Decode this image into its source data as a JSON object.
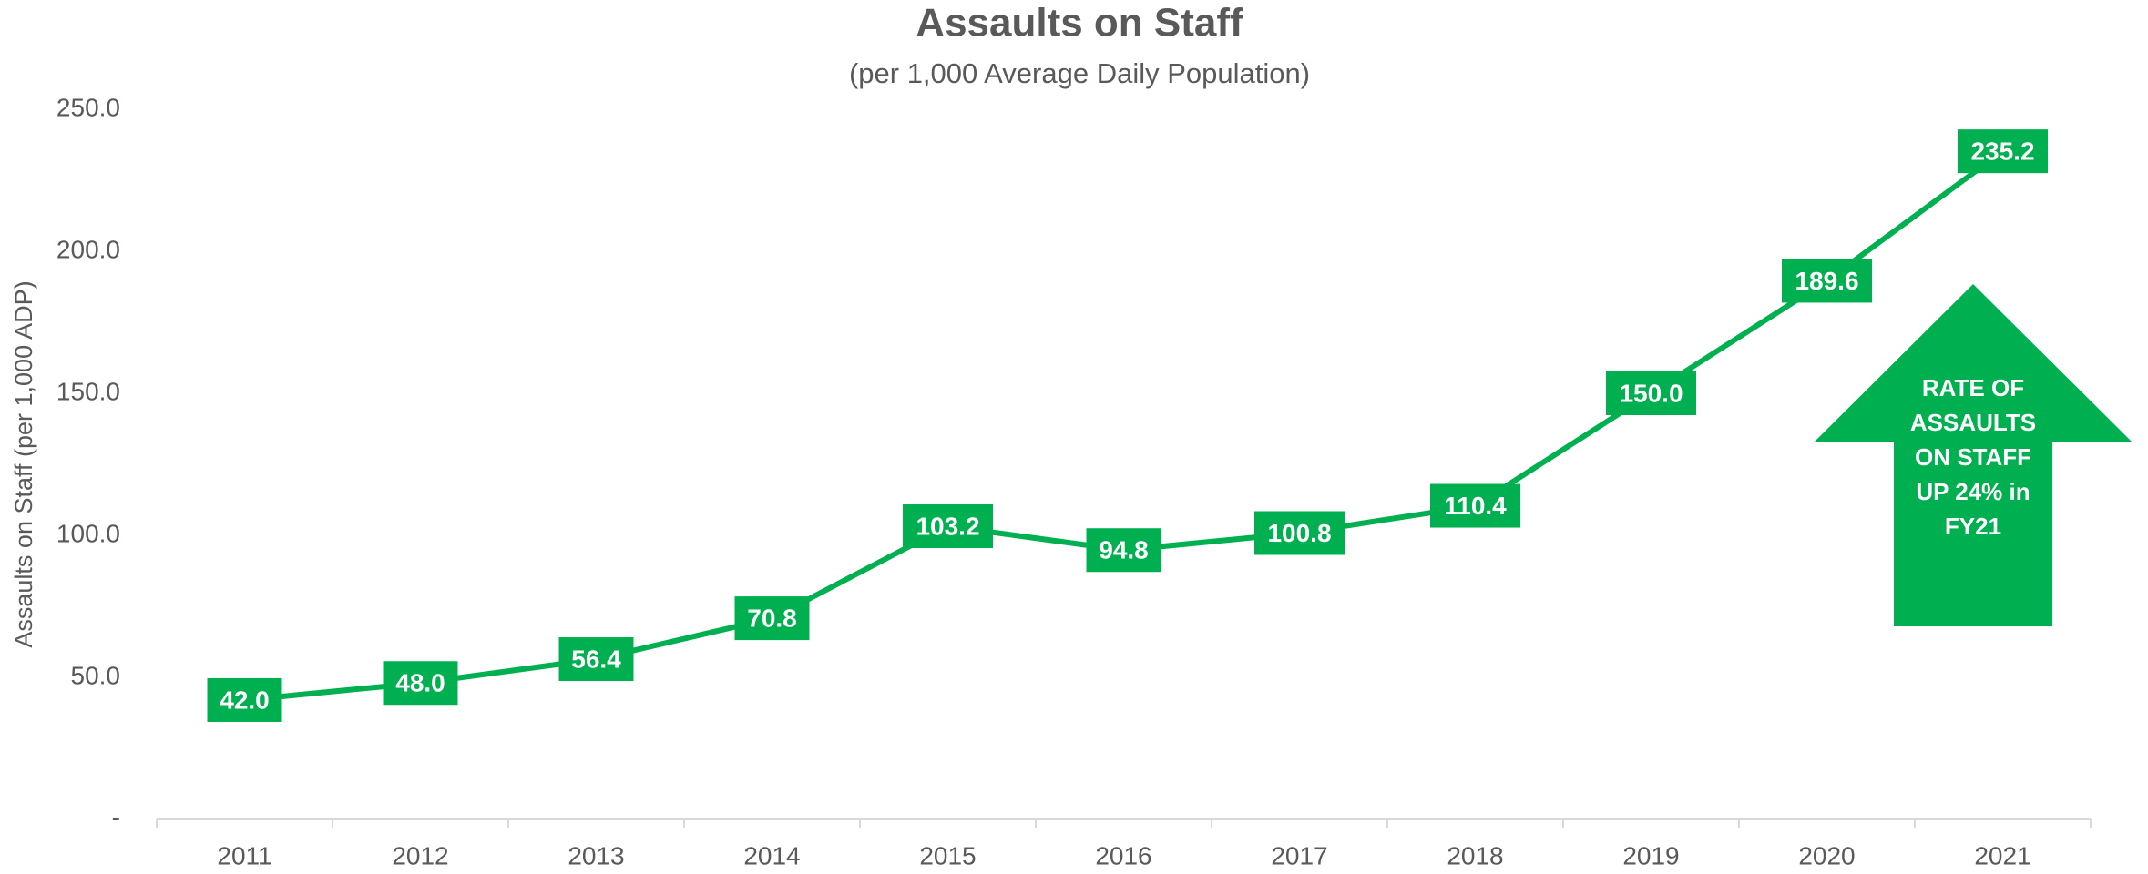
{
  "chart_data": {
    "type": "line",
    "title": "Assaults on Staff",
    "subtitle": "(per 1,000 Average Daily Population)",
    "y_label": "Assaults on Staff  (per 1,000 ADP)",
    "categories": [
      "2011",
      "2012",
      "2013",
      "2014",
      "2015",
      "2016",
      "2017",
      "2018",
      "2019",
      "2020",
      "2021"
    ],
    "values": [
      42.0,
      48.0,
      56.4,
      70.8,
      103.2,
      94.8,
      100.8,
      110.4,
      150.0,
      189.6,
      235.2
    ],
    "value_labels": [
      "42.0",
      "48.0",
      "56.4",
      "70.8",
      "103.2",
      "94.8",
      "100.8",
      "110.4",
      "150.0",
      "189.6",
      "235.2"
    ],
    "color": "#00b050",
    "ylim": [
      0,
      250
    ],
    "yticks": [
      {
        "value": 0,
        "label": "-"
      },
      {
        "value": 50,
        "label": "50.0"
      },
      {
        "value": 100,
        "label": "100.0"
      },
      {
        "value": 150,
        "label": "150.0"
      },
      {
        "value": 200,
        "label": "200.0"
      },
      {
        "value": 250,
        "label": "250.0"
      }
    ],
    "grid": false,
    "annotation": [
      "RATE OF",
      "ASSAULTS",
      "ON STAFF",
      "UP 24% in",
      "FY21"
    ]
  }
}
